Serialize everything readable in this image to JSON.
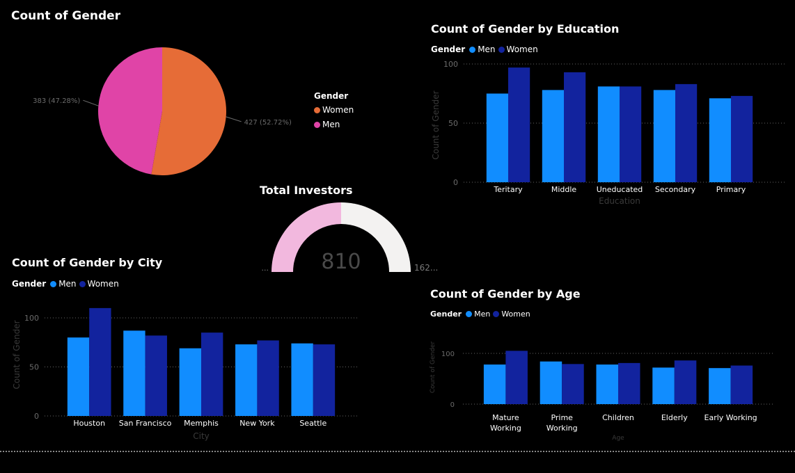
{
  "colors": {
    "men": "#118dff",
    "women": "#12239e",
    "pie_women": "#e66c37",
    "pie_men": "#e044a7",
    "gauge_fill": "#f2b8de",
    "gauge_bg": "#f3f2f1",
    "axis_text": "#6b6b6b",
    "grid": "#666666"
  },
  "legend": {
    "title": "Gender",
    "men": "Men",
    "women": "Women"
  },
  "chart_data": [
    {
      "id": "pie",
      "type": "pie",
      "title": "Count of Gender",
      "legend_title": "Gender",
      "slices": [
        {
          "name": "Women",
          "value": 427,
          "label": "427 (52.72%)"
        },
        {
          "name": "Men",
          "value": 383,
          "label": "383 (47.28%)"
        }
      ]
    },
    {
      "id": "education",
      "type": "bar",
      "title": "Count of Gender by Education",
      "xlabel": "Education",
      "ylabel": "Count of Gender",
      "ylim": [
        0,
        100
      ],
      "yticks": [
        "0",
        "50",
        "100"
      ],
      "categories": [
        "Teritary",
        "Middle",
        "Uneducated",
        "Secondary",
        "Primary"
      ],
      "series": [
        {
          "name": "Men",
          "values": [
            75,
            78,
            81,
            78,
            71
          ]
        },
        {
          "name": "Women",
          "values": [
            97,
            93,
            81,
            83,
            73
          ]
        }
      ]
    },
    {
      "id": "city",
      "type": "bar",
      "title": "Count of Gender by City",
      "xlabel": "City",
      "ylabel": "Count of Gender",
      "ylim": [
        0,
        100
      ],
      "yticks": [
        "0",
        "50",
        "100"
      ],
      "categories": [
        "Houston",
        "San Francisco",
        "Memphis",
        "New York",
        "Seattle"
      ],
      "series": [
        {
          "name": "Men",
          "values": [
            80,
            87,
            69,
            73,
            74
          ]
        },
        {
          "name": "Women",
          "values": [
            110,
            82,
            85,
            77,
            73
          ]
        }
      ]
    },
    {
      "id": "age",
      "type": "bar",
      "title": "Count of Gender by Age",
      "xlabel": "Age",
      "ylabel": "Count of Gender",
      "ylim": [
        0,
        100
      ],
      "yticks": [
        "0",
        "100"
      ],
      "categories": [
        [
          "Mature",
          "Working"
        ],
        [
          "Prime",
          "Working"
        ],
        [
          "Children"
        ],
        [
          "Elderly"
        ],
        [
          "Early Working"
        ]
      ],
      "series": [
        {
          "name": "Men",
          "values": [
            78,
            84,
            78,
            72,
            71
          ]
        },
        {
          "name": "Women",
          "values": [
            105,
            79,
            81,
            86,
            76
          ]
        }
      ]
    },
    {
      "id": "gauge",
      "type": "gauge",
      "title": "Total Investors",
      "value": 810,
      "value_label": "810",
      "min_label": "...",
      "max_label": "162...",
      "fraction": 0.5
    }
  ]
}
